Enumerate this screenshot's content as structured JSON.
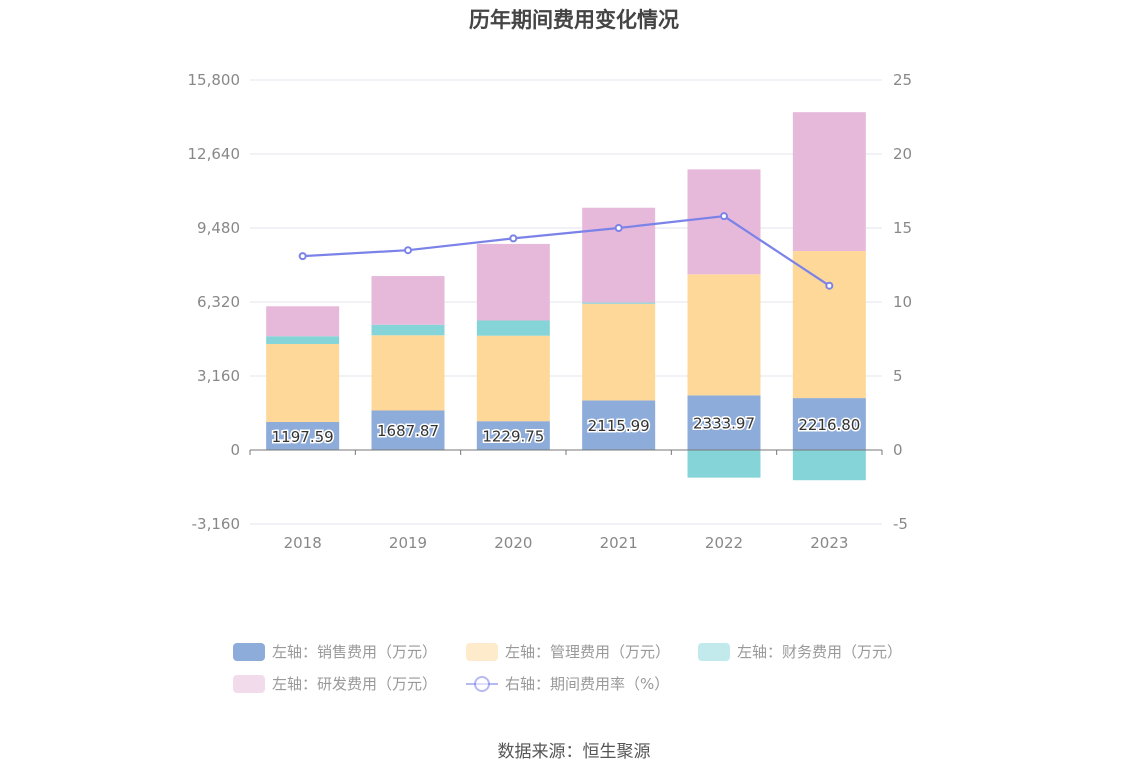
{
  "page": {
    "title": "历年期间费用变化情况",
    "source": "数据来源：恒生聚源"
  },
  "chart_data": {
    "type": "bar",
    "title": "历年期间费用变化情况",
    "categories": [
      "2018",
      "2019",
      "2020",
      "2021",
      "2022",
      "2023"
    ],
    "stacked": true,
    "y_left": {
      "min": -3160,
      "max": 15800,
      "ticks": [
        -3160,
        0,
        3160,
        6320,
        9480,
        12640,
        15800
      ],
      "tick_labels": [
        "-3,160",
        "0",
        "3,160",
        "6,320",
        "9,480",
        "12,640",
        "15,800"
      ]
    },
    "y_right": {
      "min": -5,
      "max": 25,
      "ticks": [
        -5,
        0,
        5,
        10,
        15,
        20,
        25
      ],
      "tick_labels": [
        "-5",
        "0",
        "5",
        "10",
        "15",
        "20",
        "25"
      ]
    },
    "grid": true,
    "legend_position": "bottom",
    "series": [
      {
        "name": "左轴：销售费用（万元）",
        "type": "bar",
        "axis": "left",
        "color": "#8eacd9",
        "values": [
          1197.59,
          1687.87,
          1229.75,
          2115.99,
          2333.97,
          2216.8
        ],
        "labels": [
          "1197.59",
          "1687.87",
          "1229.75",
          "2115.99",
          "2333.97",
          "2216.80"
        ]
      },
      {
        "name": "左轴：管理费用（万元）",
        "type": "bar",
        "axis": "left",
        "color": "#fed899",
        "values": [
          3330,
          3210,
          3650,
          4130,
          5170,
          6280
        ]
      },
      {
        "name": "左轴：财务费用（万元）",
        "type": "bar",
        "axis": "left",
        "color": "#85d4d8",
        "values": [
          330,
          450,
          650,
          50,
          -1180,
          -1290
        ]
      },
      {
        "name": "左轴：研发费用（万元）",
        "type": "bar",
        "axis": "left",
        "color": "#e6b9da",
        "values": [
          1280,
          2080,
          3270,
          4050,
          4480,
          5930
        ]
      },
      {
        "name": "右轴：期间费用率（%）",
        "type": "line",
        "axis": "right",
        "color": "#7b82e8",
        "values": [
          13.1,
          13.5,
          14.3,
          15.0,
          15.8,
          11.1
        ]
      }
    ]
  }
}
